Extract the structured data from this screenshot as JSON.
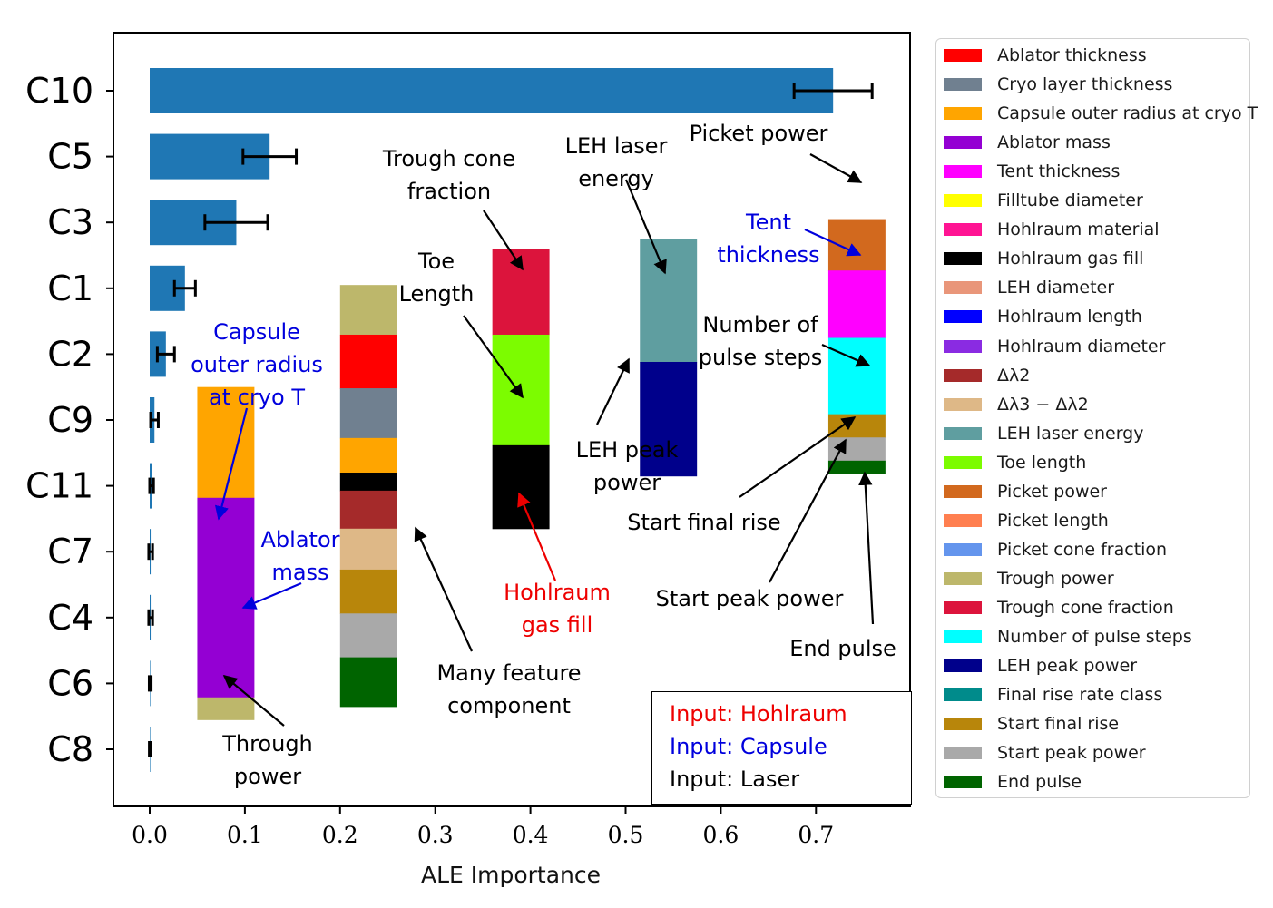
{
  "chart_data": {
    "type": "bar",
    "orientation": "horizontal",
    "xlabel": "ALE Importance",
    "ylabel": "",
    "xlim": [
      -0.04,
      0.795
    ],
    "xticks": [
      "0.0",
      "0.1",
      "0.2",
      "0.3",
      "0.4",
      "0.5",
      "0.6",
      "0.7"
    ],
    "categories": [
      "C10",
      "C5",
      "C3",
      "C1",
      "C2",
      "C9",
      "C11",
      "C7",
      "C4",
      "C6",
      "C8"
    ],
    "values": [
      0.718,
      0.126,
      0.091,
      0.037,
      0.017,
      0.005,
      0.002,
      0.001,
      0.001,
      0.0005,
      0.0001
    ],
    "errors": [
      0.041,
      0.028,
      0.033,
      0.011,
      0.009,
      0.004,
      0.002,
      0.002,
      0.002,
      0.001,
      0.0005
    ],
    "bar_color": "#1f77b4",
    "component_stacks": [
      {
        "x_range": [
          0.05,
          0.11
        ],
        "y_range": [
          4.5,
          9.55
        ],
        "segments": [
          {
            "feature": "Capsule outer radius at cryo T",
            "fraction": 0.333
          },
          {
            "feature": "Ablator mass",
            "fraction": 0.6
          },
          {
            "feature": "Trough power",
            "fraction": 0.067
          }
        ]
      },
      {
        "x_range": [
          0.2,
          0.26
        ],
        "y_range": [
          2.95,
          10.35
        ],
        "segments": [
          {
            "feature": "Trough power",
            "fraction": 0.102
          },
          {
            "feature": "Ablator thickness",
            "fraction": 0.11
          },
          {
            "feature": "Cryo layer thickness",
            "fraction": 0.102
          },
          {
            "feature": "Capsule outer radius at cryo T",
            "fraction": 0.071
          },
          {
            "feature": "Hohlraum gas fill",
            "fraction": 0.037
          },
          {
            "feature": "Δλ2",
            "fraction": 0.078
          },
          {
            "feature": "Δλ3 − Δλ2",
            "fraction": 0.084
          },
          {
            "feature": "Start final rise",
            "fraction": 0.09
          },
          {
            "feature": "Start peak power",
            "fraction": 0.09
          },
          {
            "feature": "End pulse",
            "fraction": 0.101
          }
        ]
      },
      {
        "x_range": [
          0.36,
          0.42
        ],
        "y_range": [
          2.4,
          6.65
        ],
        "segments": [
          {
            "feature": "Trough cone fraction",
            "fraction": 0.307
          },
          {
            "feature": "Toe length",
            "fraction": 0.395
          },
          {
            "feature": "Hohlraum gas fill",
            "fraction": 0.298
          }
        ]
      },
      {
        "x_range": [
          0.515,
          0.575
        ],
        "y_range": [
          2.25,
          5.85
        ],
        "segments": [
          {
            "feature": "LEH laser energy",
            "fraction": 0.519
          },
          {
            "feature": "LEH peak power",
            "fraction": 0.481
          }
        ]
      },
      {
        "x_range": [
          0.713,
          0.773
        ],
        "y_range": [
          1.95,
          5.7
        ],
        "segments": [
          {
            "feature": "Picket power",
            "fraction": 0.208
          },
          {
            "feature": "Tent thickness",
            "fraction": 0.273
          },
          {
            "feature": "Number of pulse steps",
            "fraction": 0.309
          },
          {
            "feature": "Start final rise",
            "fraction": 0.094
          },
          {
            "feature": "Start peak power",
            "fraction": 0.094
          },
          {
            "feature": "End pulse",
            "fraction": 0.052
          }
        ]
      }
    ],
    "annotations": [
      {
        "lines": [
          "Capsule",
          "outer radius",
          "at cryo T"
        ],
        "color": "#0000dd"
      },
      {
        "lines": [
          "Ablator",
          "mass"
        ],
        "color": "#0000dd"
      },
      {
        "lines": [
          "Through",
          "power"
        ],
        "color": "#000000"
      },
      {
        "lines": [
          "Many feature",
          "component"
        ],
        "color": "#000000"
      },
      {
        "lines": [
          "Trough cone",
          "fraction"
        ],
        "color": "#000000"
      },
      {
        "lines": [
          "Toe",
          "Length"
        ],
        "color": "#000000"
      },
      {
        "lines": [
          "Hohlraum",
          "gas fill"
        ],
        "color": "#ee0000"
      },
      {
        "lines": [
          "LEH laser",
          "energy"
        ],
        "color": "#000000"
      },
      {
        "lines": [
          "LEH peak",
          "power"
        ],
        "color": "#000000"
      },
      {
        "lines": [
          "Picket power"
        ],
        "color": "#000000"
      },
      {
        "lines": [
          "Tent",
          "thickness"
        ],
        "color": "#0000dd"
      },
      {
        "lines": [
          "Number of",
          "pulse steps"
        ],
        "color": "#000000"
      },
      {
        "lines": [
          "Start final rise"
        ],
        "color": "#000000"
      },
      {
        "lines": [
          "Start peak power"
        ],
        "color": "#000000"
      },
      {
        "lines": [
          "End pulse"
        ],
        "color": "#000000"
      }
    ],
    "inputs_key": [
      {
        "text": "Input: Hohlraum",
        "color": "#ee0000"
      },
      {
        "text": "Input: Capsule",
        "color": "#0000dd"
      },
      {
        "text": "Input: Laser",
        "color": "#000000"
      }
    ],
    "legend": {
      "position": "right",
      "entries": [
        {
          "label": "Ablator thickness",
          "color": "#ff0000"
        },
        {
          "label": "Cryo layer thickness",
          "color": "#708090"
        },
        {
          "label": "Capsule outer radius at cryo T",
          "color": "#ffa500"
        },
        {
          "label": "Ablator mass",
          "color": "#9400d3"
        },
        {
          "label": "Tent thickness",
          "color": "#ff00ff"
        },
        {
          "label": "Filltube diameter",
          "color": "#ffff00"
        },
        {
          "label": "Hohlraum material",
          "color": "#ff1493"
        },
        {
          "label": "Hohlraum gas fill",
          "color": "#000000"
        },
        {
          "label": "LEH diameter",
          "color": "#e9967a"
        },
        {
          "label": "Hohlraum length",
          "color": "#0000ff"
        },
        {
          "label": "Hohlraum diameter",
          "color": "#8a2be2"
        },
        {
          "label": "Δλ2",
          "color": "#a52a2a"
        },
        {
          "label": "Δλ3 − Δλ2",
          "color": "#deb887"
        },
        {
          "label": "LEH laser energy",
          "color": "#5f9ea0"
        },
        {
          "label": "Toe length",
          "color": "#7cfc00"
        },
        {
          "label": "Picket power",
          "color": "#d2691e"
        },
        {
          "label": "Picket length",
          "color": "#ff7f50"
        },
        {
          "label": "Picket cone fraction",
          "color": "#6495ed"
        },
        {
          "label": "Trough power",
          "color": "#bdb76b"
        },
        {
          "label": "Trough cone fraction",
          "color": "#dc143c"
        },
        {
          "label": "Number of pulse steps",
          "color": "#00ffff"
        },
        {
          "label": "LEH peak power",
          "color": "#00008b"
        },
        {
          "label": "Final rise rate class",
          "color": "#008b8b"
        },
        {
          "label": "Start final rise",
          "color": "#b8860b"
        },
        {
          "label": "Start peak power",
          "color": "#a9a9a9"
        },
        {
          "label": "End pulse",
          "color": "#006400"
        }
      ]
    }
  }
}
